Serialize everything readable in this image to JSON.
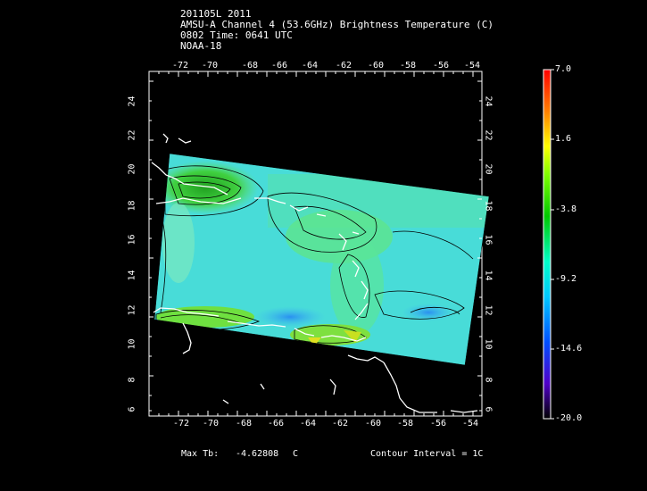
{
  "header": {
    "line1": "201105L 2011",
    "line2": "AMSU-A Channel 4 (53.6GHz) Brightness Temperature (C)",
    "line3": "0802 Time: 0641 UTC",
    "line4": "NOAA-18"
  },
  "axes": {
    "lon_ticks": [
      "-72",
      "-70",
      "-68",
      "-66",
      "-64",
      "-62",
      "-60",
      "-58",
      "-56",
      "-54"
    ],
    "lat_ticks": [
      "24",
      "22",
      "20",
      "18",
      "16",
      "14",
      "12",
      "10",
      "8",
      "6"
    ]
  },
  "colorbar": {
    "labels": [
      "7.0",
      "1.6",
      "-3.8",
      "-9.2",
      "-14.6",
      "-20.0"
    ]
  },
  "footer": {
    "max_label": "Max Tb:",
    "max_value": "-4.62808",
    "max_unit": "C",
    "contour_text": "Contour Interval = 1C"
  },
  "colors": {
    "background": "#000000",
    "ocean_field": "#4ce0e6",
    "warm_field": "#3fd23c",
    "cold_field": "#2fb0f0",
    "coast": "#ffffff"
  }
}
